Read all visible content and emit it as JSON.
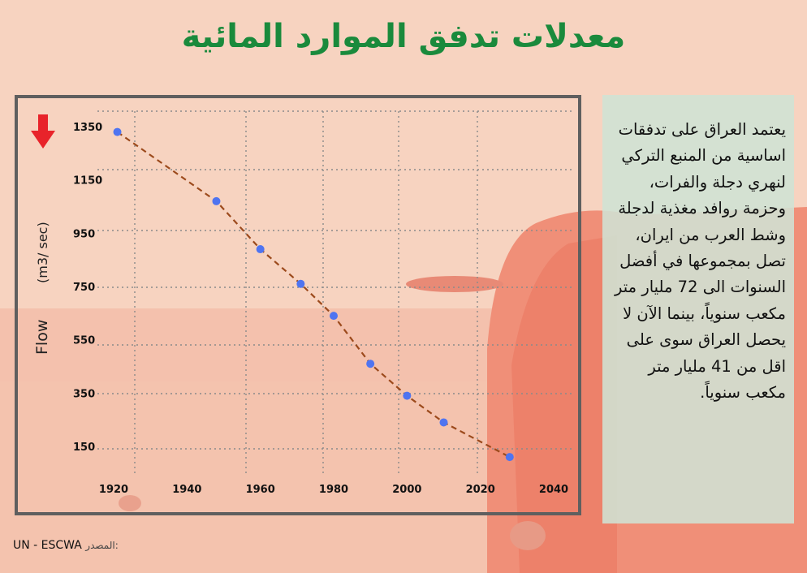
{
  "title": "معدلات تدفق الموارد المائية",
  "colors": {
    "title": "#1a8a3c",
    "line": "#9c4a1c",
    "marker": "#4f74f0",
    "arrow": "#e8232a",
    "frame": "#5f5f5f",
    "grid": "#8a8a8a"
  },
  "info_text": "يعتمد العراق على تدفقات اساسية  من المنبع التركي لنهري دجلة والفرات، وحزمة روافد مغذية لدجلة وشط العرب من ايران، تصل بمجموعها في أفضل السنوات الى 72 مليار متر مكعب سنوياً، بينما الآن لا يحصل العراق سوى على اقل من 41 مليار متر  مكعب سنوياً.",
  "source": {
    "label": "المصدر:",
    "value": "UN - ESCWA"
  },
  "chart_data": {
    "type": "line",
    "ylabel": "Flow",
    "yunit": "(m3/ sec)",
    "x_ticks": [
      "1920",
      "1940",
      "1960",
      "1980",
      "2000",
      "2020",
      "2040"
    ],
    "y_ticks": [
      "150",
      "350",
      "550",
      "750",
      "950",
      "1150",
      "1350"
    ],
    "xlim": [
      1920,
      2040
    ],
    "ylim": [
      100,
      1400
    ],
    "grid": true,
    "trend_arrow": "down",
    "series": [
      {
        "x": [
          1921,
          1948,
          1960,
          1971,
          1980,
          1990,
          2000,
          2010,
          2028
        ],
        "y": [
          1330,
          1070,
          890,
          760,
          640,
          460,
          340,
          240,
          110
        ]
      }
    ]
  }
}
